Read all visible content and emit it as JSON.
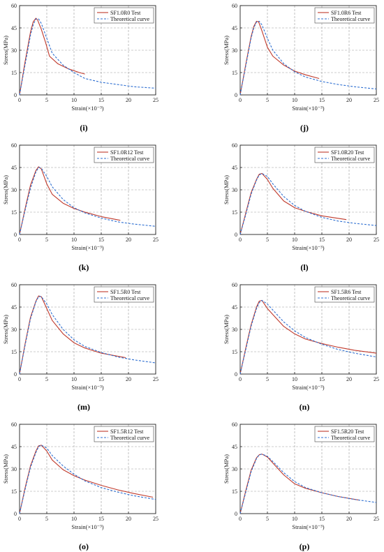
{
  "figure": {
    "panel_labels": [
      "(i)",
      "(j)",
      "(k)",
      "(l)",
      "(m)",
      "(n)",
      "(o)",
      "(p)"
    ]
  },
  "chart_data": [
    {
      "type": "line",
      "panel": "(i)",
      "xlabel": "Strain(×10⁻³)",
      "ylabel": "Stress(MPa)",
      "xlim": [
        0,
        25
      ],
      "ylim": [
        0,
        60
      ],
      "xticks": [
        0,
        5,
        10,
        15,
        20,
        25
      ],
      "yticks": [
        0,
        15,
        30,
        45,
        60
      ],
      "grid": true,
      "legend_position": "top-right",
      "series": [
        {
          "name": "SF1.0R0 Test",
          "color": "#c0392b",
          "x": [
            0,
            1,
            2,
            2.5,
            3,
            3.3,
            4,
            4.8,
            5.5,
            7,
            9,
            11,
            12
          ],
          "y": [
            0,
            22,
            42,
            49,
            51.5,
            50.5,
            44,
            35,
            26,
            21,
            17.5,
            15,
            14
          ]
        },
        {
          "name": "Theoretical curve",
          "color": "#2e6fd1",
          "x": [
            0,
            1,
            2,
            2.5,
            3,
            3.5,
            4,
            5,
            6,
            8,
            10,
            12,
            15,
            18,
            21,
            25
          ],
          "y": [
            0,
            20,
            40,
            47,
            51,
            51,
            48,
            38,
            28,
            20,
            15,
            11,
            8.5,
            7,
            5.5,
            4.5
          ]
        }
      ]
    },
    {
      "type": "line",
      "panel": "(j)",
      "xlabel": "Strain(×10⁻³)",
      "ylabel": "Stress(MPa)",
      "xlim": [
        0,
        25
      ],
      "ylim": [
        0,
        60
      ],
      "xticks": [
        0,
        5,
        10,
        15,
        20,
        25
      ],
      "yticks": [
        0,
        15,
        30,
        45,
        60
      ],
      "grid": true,
      "legend_position": "top-right",
      "series": [
        {
          "name": "SF1.0R6 Test",
          "color": "#c0392b",
          "x": [
            0,
            1,
            2,
            2.5,
            3,
            3.4,
            4,
            5,
            6,
            8,
            10,
            12,
            14.5
          ],
          "y": [
            0,
            20,
            39,
            46,
            49.5,
            49,
            43,
            32,
            26,
            20,
            16,
            13.5,
            11
          ]
        },
        {
          "name": "Theoretical curve",
          "color": "#2e6fd1",
          "x": [
            0,
            1,
            2,
            2.5,
            3,
            3.5,
            4,
            5,
            6,
            8,
            10,
            12,
            15,
            18,
            21,
            25
          ],
          "y": [
            0,
            19,
            38,
            45,
            49,
            49.5,
            47,
            38,
            30,
            21,
            15.5,
            12,
            9,
            7,
            5.5,
            4
          ]
        }
      ]
    },
    {
      "type": "line",
      "panel": "(k)",
      "xlabel": "Strain(×10⁻³)",
      "ylabel": "Stress(MPa)",
      "xlim": [
        0,
        25
      ],
      "ylim": [
        0,
        60
      ],
      "xticks": [
        0,
        5,
        10,
        15,
        20,
        25
      ],
      "yticks": [
        0,
        15,
        30,
        45,
        60
      ],
      "grid": true,
      "legend_position": "top-right",
      "series": [
        {
          "name": "SF1.0R12 Test",
          "color": "#c0392b",
          "x": [
            0,
            1,
            2,
            3,
            3.5,
            4,
            5,
            6,
            8,
            10,
            12,
            15,
            18.5
          ],
          "y": [
            0,
            17,
            33,
            43,
            45.5,
            44,
            34,
            27,
            21,
            17.5,
            15,
            12,
            9.5
          ]
        },
        {
          "name": "Theoretical curve",
          "color": "#2e6fd1",
          "x": [
            0,
            1,
            2,
            3,
            3.5,
            4,
            5,
            6,
            8,
            10,
            12,
            15,
            18,
            21,
            25
          ],
          "y": [
            0,
            16,
            31,
            42,
            45,
            44.5,
            39,
            32,
            23.5,
            18,
            14.5,
            11,
            8.5,
            7,
            5.5
          ]
        }
      ]
    },
    {
      "type": "line",
      "panel": "(l)",
      "xlabel": "Strain(×10⁻³)",
      "ylabel": "Stress(MPa)",
      "xlim": [
        0,
        25
      ],
      "ylim": [
        0,
        60
      ],
      "xticks": [
        0,
        5,
        10,
        15,
        20,
        25
      ],
      "yticks": [
        0,
        15,
        30,
        45,
        60
      ],
      "grid": true,
      "legend_position": "top-right",
      "series": [
        {
          "name": "SF1.0R20 Test",
          "color": "#c0392b",
          "x": [
            0,
            1,
            2,
            3,
            3.5,
            4,
            5,
            6,
            8,
            10,
            12,
            15,
            19.5
          ],
          "y": [
            0,
            14,
            28,
            37,
            40.5,
            41,
            37,
            31,
            22.5,
            18,
            15.5,
            12.5,
            10
          ]
        },
        {
          "name": "Theoretical curve",
          "color": "#2e6fd1",
          "x": [
            0,
            1,
            2,
            3,
            3.5,
            4,
            5,
            6,
            8,
            10,
            12,
            15,
            18,
            21,
            25
          ],
          "y": [
            0,
            13,
            27,
            36.5,
            40,
            41,
            39,
            34,
            25.5,
            19.5,
            15.5,
            11.5,
            9,
            7.5,
            6
          ]
        }
      ]
    },
    {
      "type": "line",
      "panel": "(m)",
      "xlabel": "Strain(×10⁻³)",
      "ylabel": "Stress(MPa)",
      "xlim": [
        0,
        25
      ],
      "ylim": [
        0,
        60
      ],
      "xticks": [
        0,
        5,
        10,
        15,
        20,
        25
      ],
      "yticks": [
        0,
        15,
        30,
        45,
        60
      ],
      "grid": true,
      "legend_position": "top-right",
      "series": [
        {
          "name": "SF1.5R0 Test",
          "color": "#c0392b",
          "x": [
            0,
            1,
            2,
            3,
            3.5,
            4,
            5,
            6,
            8,
            10,
            12,
            15,
            19.5
          ],
          "y": [
            0,
            20,
            38,
            49,
            52.5,
            52,
            44,
            36,
            27,
            21,
            17.5,
            14,
            11
          ]
        },
        {
          "name": "Theoretical curve",
          "color": "#2e6fd1",
          "x": [
            0,
            1,
            2,
            3,
            3.5,
            4,
            5,
            6,
            8,
            10,
            12,
            15,
            18,
            21,
            25
          ],
          "y": [
            0,
            19,
            37,
            48.5,
            52,
            52,
            47,
            40,
            30,
            23,
            18.5,
            14.5,
            11.5,
            9.5,
            7.5
          ]
        }
      ]
    },
    {
      "type": "line",
      "panel": "(n)",
      "xlabel": "Strain(×10⁻³)",
      "ylabel": "Stress(MPa)",
      "xlim": [
        0,
        25
      ],
      "ylim": [
        0,
        60
      ],
      "xticks": [
        0,
        5,
        10,
        15,
        20,
        25
      ],
      "yticks": [
        0,
        15,
        30,
        45,
        60
      ],
      "grid": true,
      "legend_position": "top-right",
      "series": [
        {
          "name": "SF1.5R6 Test",
          "color": "#c0392b",
          "x": [
            0,
            1,
            2,
            3,
            3.5,
            4,
            5,
            6,
            8,
            10,
            12,
            15,
            18,
            21,
            25
          ],
          "y": [
            0,
            17,
            33,
            45,
            49,
            49.5,
            44,
            40,
            32,
            27,
            23.5,
            20.5,
            18,
            16,
            14
          ]
        },
        {
          "name": "Theoretical curve",
          "color": "#2e6fd1",
          "x": [
            0,
            1,
            2,
            3,
            3.5,
            4,
            5,
            6,
            8,
            10,
            12,
            15,
            18,
            21,
            25
          ],
          "y": [
            0,
            16,
            32,
            44,
            48,
            49.5,
            47,
            43,
            35,
            29,
            24.5,
            20,
            16.5,
            14,
            11.5
          ]
        }
      ]
    },
    {
      "type": "line",
      "panel": "(o)",
      "xlabel": "Strain(×10⁻³)",
      "ylabel": "Stress(MPa)",
      "xlim": [
        0,
        25
      ],
      "ylim": [
        0,
        60
      ],
      "xticks": [
        0,
        5,
        10,
        15,
        20,
        25
      ],
      "yticks": [
        0,
        15,
        30,
        45,
        60
      ],
      "grid": true,
      "legend_position": "top-right",
      "series": [
        {
          "name": "SF1.5R12 Test",
          "color": "#c0392b",
          "x": [
            0,
            1,
            2,
            3,
            3.5,
            4,
            5,
            6,
            8,
            10,
            12,
            15,
            18,
            21,
            24.5
          ],
          "y": [
            0,
            17,
            32,
            42,
            45.5,
            46,
            42,
            36,
            29.5,
            25.5,
            22.5,
            19,
            16,
            13.5,
            11
          ]
        },
        {
          "name": "Theoretical curve",
          "color": "#2e6fd1",
          "x": [
            0,
            1,
            2,
            3,
            3.5,
            4,
            5,
            6,
            8,
            10,
            12,
            15,
            18,
            21,
            25
          ],
          "y": [
            0,
            16,
            31,
            41,
            45,
            46,
            44,
            39,
            32,
            26.5,
            22,
            17.5,
            14.5,
            12,
            9.5
          ]
        }
      ]
    },
    {
      "type": "line",
      "panel": "(p)",
      "xlabel": "Strain(×10⁻³)",
      "ylabel": "Stress(MPa)",
      "xlim": [
        0,
        25
      ],
      "ylim": [
        0,
        60
      ],
      "xticks": [
        0,
        5,
        10,
        15,
        20,
        25
      ],
      "yticks": [
        0,
        15,
        30,
        45,
        60
      ],
      "grid": true,
      "legend_position": "top-right",
      "series": [
        {
          "name": "SF1.5R20 Test",
          "color": "#c0392b",
          "x": [
            0,
            1,
            2,
            3,
            3.5,
            4,
            5,
            6,
            8,
            10,
            12,
            15,
            18,
            22
          ],
          "y": [
            0,
            15,
            29,
            37.5,
            39.5,
            40,
            38,
            34,
            26,
            20,
            17,
            14,
            11.5,
            9
          ]
        },
        {
          "name": "Theoretical curve",
          "color": "#2e6fd1",
          "x": [
            0,
            1,
            2,
            3,
            3.5,
            4,
            5,
            6,
            8,
            10,
            12,
            15,
            18,
            21,
            25
          ],
          "y": [
            0,
            14,
            28,
            37,
            39.5,
            40,
            38.5,
            35,
            27.5,
            21.5,
            17.5,
            14,
            11.5,
            9.5,
            7.5
          ]
        }
      ]
    }
  ]
}
